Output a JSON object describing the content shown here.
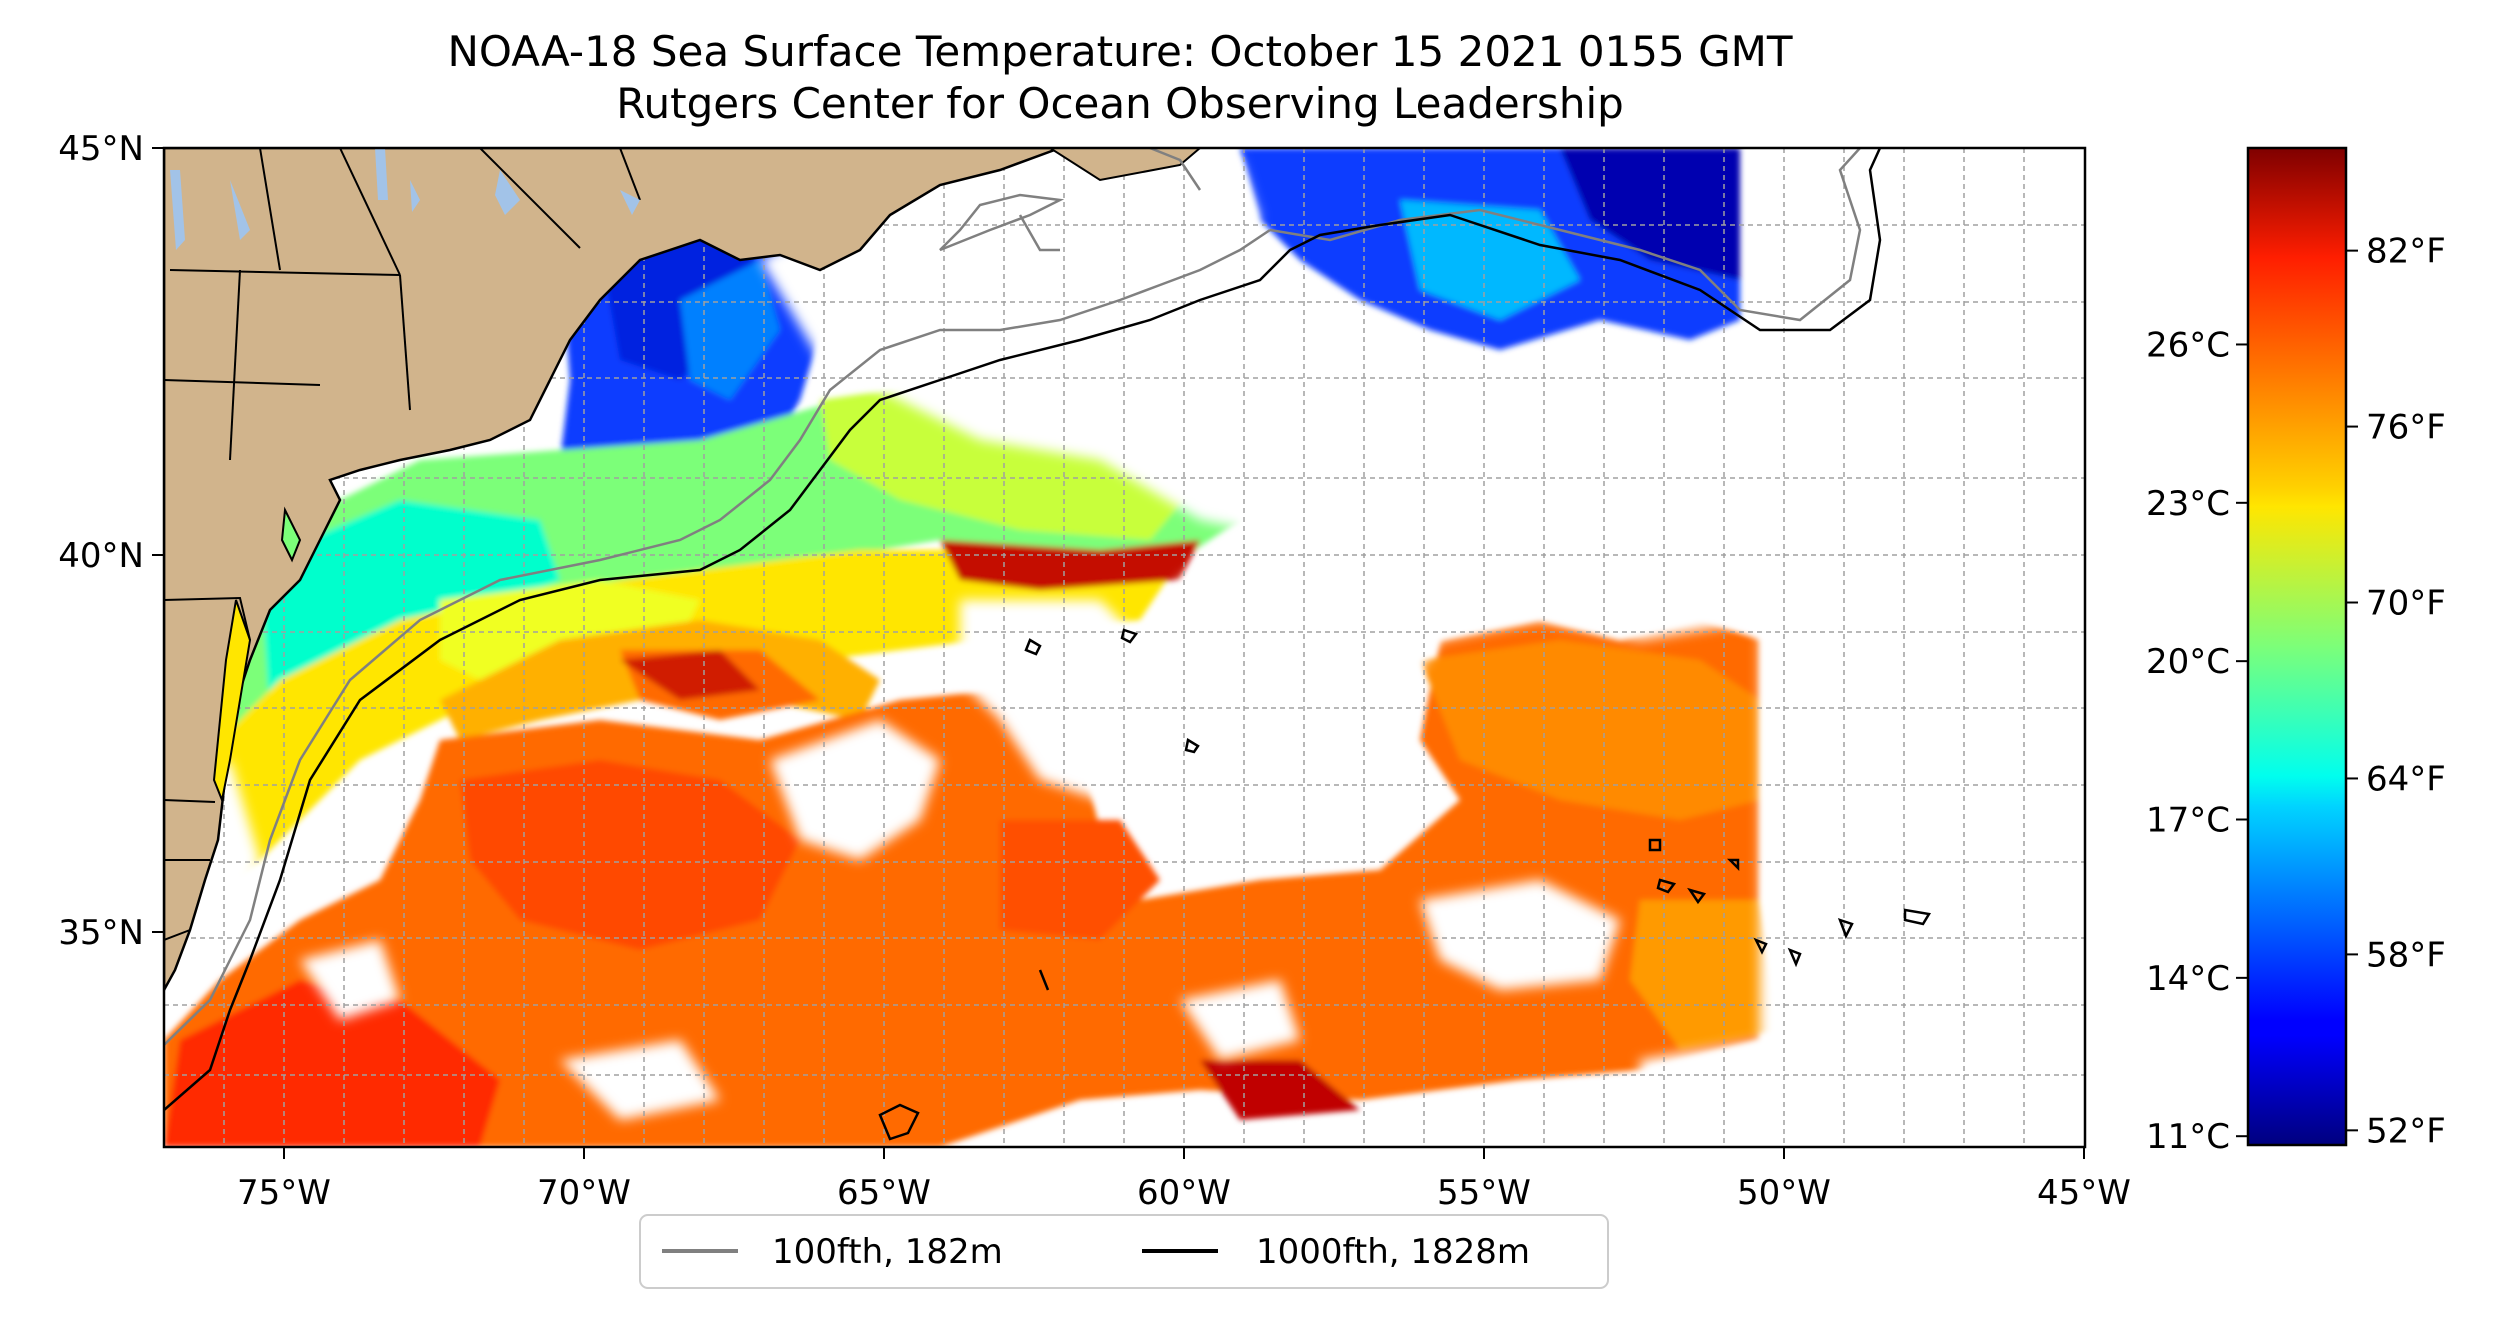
{
  "title": {
    "line1": "NOAA-18 Sea Surface Temperature: October 15 2021 0155 GMT",
    "line2": "Rutgers Center for Ocean Observing Leadership"
  },
  "map": {
    "lon_range": [
      -77,
      -45
    ],
    "lat_range": [
      32.2,
      45
    ],
    "lat_ticks": [
      {
        "value": 45,
        "label": "45°N"
      },
      {
        "value": 40,
        "label": "40°N"
      },
      {
        "value": 35,
        "label": "35°N"
      }
    ],
    "lon_ticks": [
      {
        "value": -75,
        "label": "75°W"
      },
      {
        "value": -70,
        "label": "70°W"
      },
      {
        "value": -65,
        "label": "65°W"
      },
      {
        "value": -60,
        "label": "60°W"
      },
      {
        "value": -55,
        "label": "55°W"
      },
      {
        "value": -50,
        "label": "50°W"
      },
      {
        "value": -45,
        "label": "45°W"
      }
    ],
    "gridlines": true,
    "colors": {
      "land": "#d1b48c",
      "lakes": "#a2c3e8",
      "isobath_100fth": "#808080",
      "isobath_1000fth": "#000000"
    }
  },
  "colorbar": {
    "colormap": "jet",
    "range_f": [
      51.5,
      85.5
    ],
    "celsius_ticks": [
      {
        "value": 11,
        "label": "11°C"
      },
      {
        "value": 14,
        "label": "14°C"
      },
      {
        "value": 17,
        "label": "17°C"
      },
      {
        "value": 20,
        "label": "20°C"
      },
      {
        "value": 23,
        "label": "23°C"
      },
      {
        "value": 26,
        "label": "26°C"
      }
    ],
    "fahrenheit_ticks": [
      {
        "value": 52,
        "label": "52°F"
      },
      {
        "value": 58,
        "label": "58°F"
      },
      {
        "value": 64,
        "label": "64°F"
      },
      {
        "value": 70,
        "label": "70°F"
      },
      {
        "value": 76,
        "label": "76°F"
      },
      {
        "value": 82,
        "label": "82°F"
      }
    ]
  },
  "legend": {
    "position": "bottom-center",
    "items": [
      {
        "label": "100fth, 182m",
        "color": "#808080"
      },
      {
        "label": "1000fth, 1828m",
        "color": "#000000"
      }
    ]
  }
}
